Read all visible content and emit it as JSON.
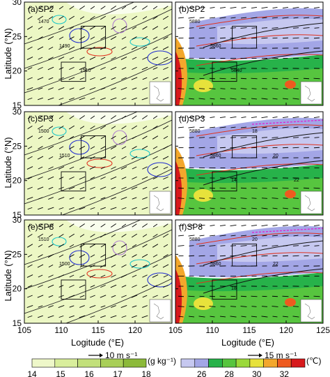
{
  "chart_data": {
    "type": "heatmap",
    "layout": "3x2 map panels",
    "panels": [
      {
        "label": "(a)SP2",
        "field": "specific humidity",
        "contours": [
          "1470",
          "1490",
          "1510"
        ]
      },
      {
        "label": "(b)SP2",
        "field": "temperature",
        "contours": [
          "5880",
          "5860",
          "5840"
        ]
      },
      {
        "label": "(c)SP3",
        "field": "specific humidity",
        "contours": [
          "1500",
          "1510"
        ]
      },
      {
        "label": "(d)SP3",
        "field": "temperature",
        "contours": [
          "5880",
          "5860",
          "14",
          "18",
          "20",
          "22"
        ]
      },
      {
        "label": "(e)SP8",
        "field": "specific humidity",
        "contours": [
          "1510",
          "1500"
        ]
      },
      {
        "label": "(f)SP8",
        "field": "temperature",
        "contours": [
          "5880",
          "5860",
          "18",
          "20",
          "22"
        ]
      }
    ],
    "xaxis": {
      "label": "Logitude (°E)",
      "ticks_left": [
        "105",
        "110",
        "115",
        "120"
      ],
      "ticks_right": [
        "105",
        "110",
        "115",
        "120",
        "125"
      ],
      "range": [
        105,
        125
      ]
    },
    "yaxis": {
      "label": "Latitude (°N)",
      "ticks": [
        "15",
        "20",
        "25",
        "30"
      ],
      "range": [
        15,
        30
      ]
    },
    "colorbar_left": {
      "ticks": [
        "14",
        "15",
        "16",
        "17",
        "18"
      ],
      "unit": "(g kg⁻¹)",
      "colors": [
        "#eef7c9",
        "#d9ee9c",
        "#c2e07a",
        "#a8cf57",
        "#8cba3a"
      ]
    },
    "colorbar_right": {
      "ticks": [
        "26",
        "28",
        "30",
        "32"
      ],
      "unit": "(℃)",
      "colors": [
        "#c6c8f0",
        "#a3a6e6",
        "#27b24a",
        "#57c53f",
        "#9ad93a",
        "#e7e23b",
        "#f3a72c",
        "#ee5a1f",
        "#d7191c"
      ]
    },
    "wind_ref_left": "10 m s⁻¹",
    "wind_ref_right": "15 m s⁻¹"
  }
}
